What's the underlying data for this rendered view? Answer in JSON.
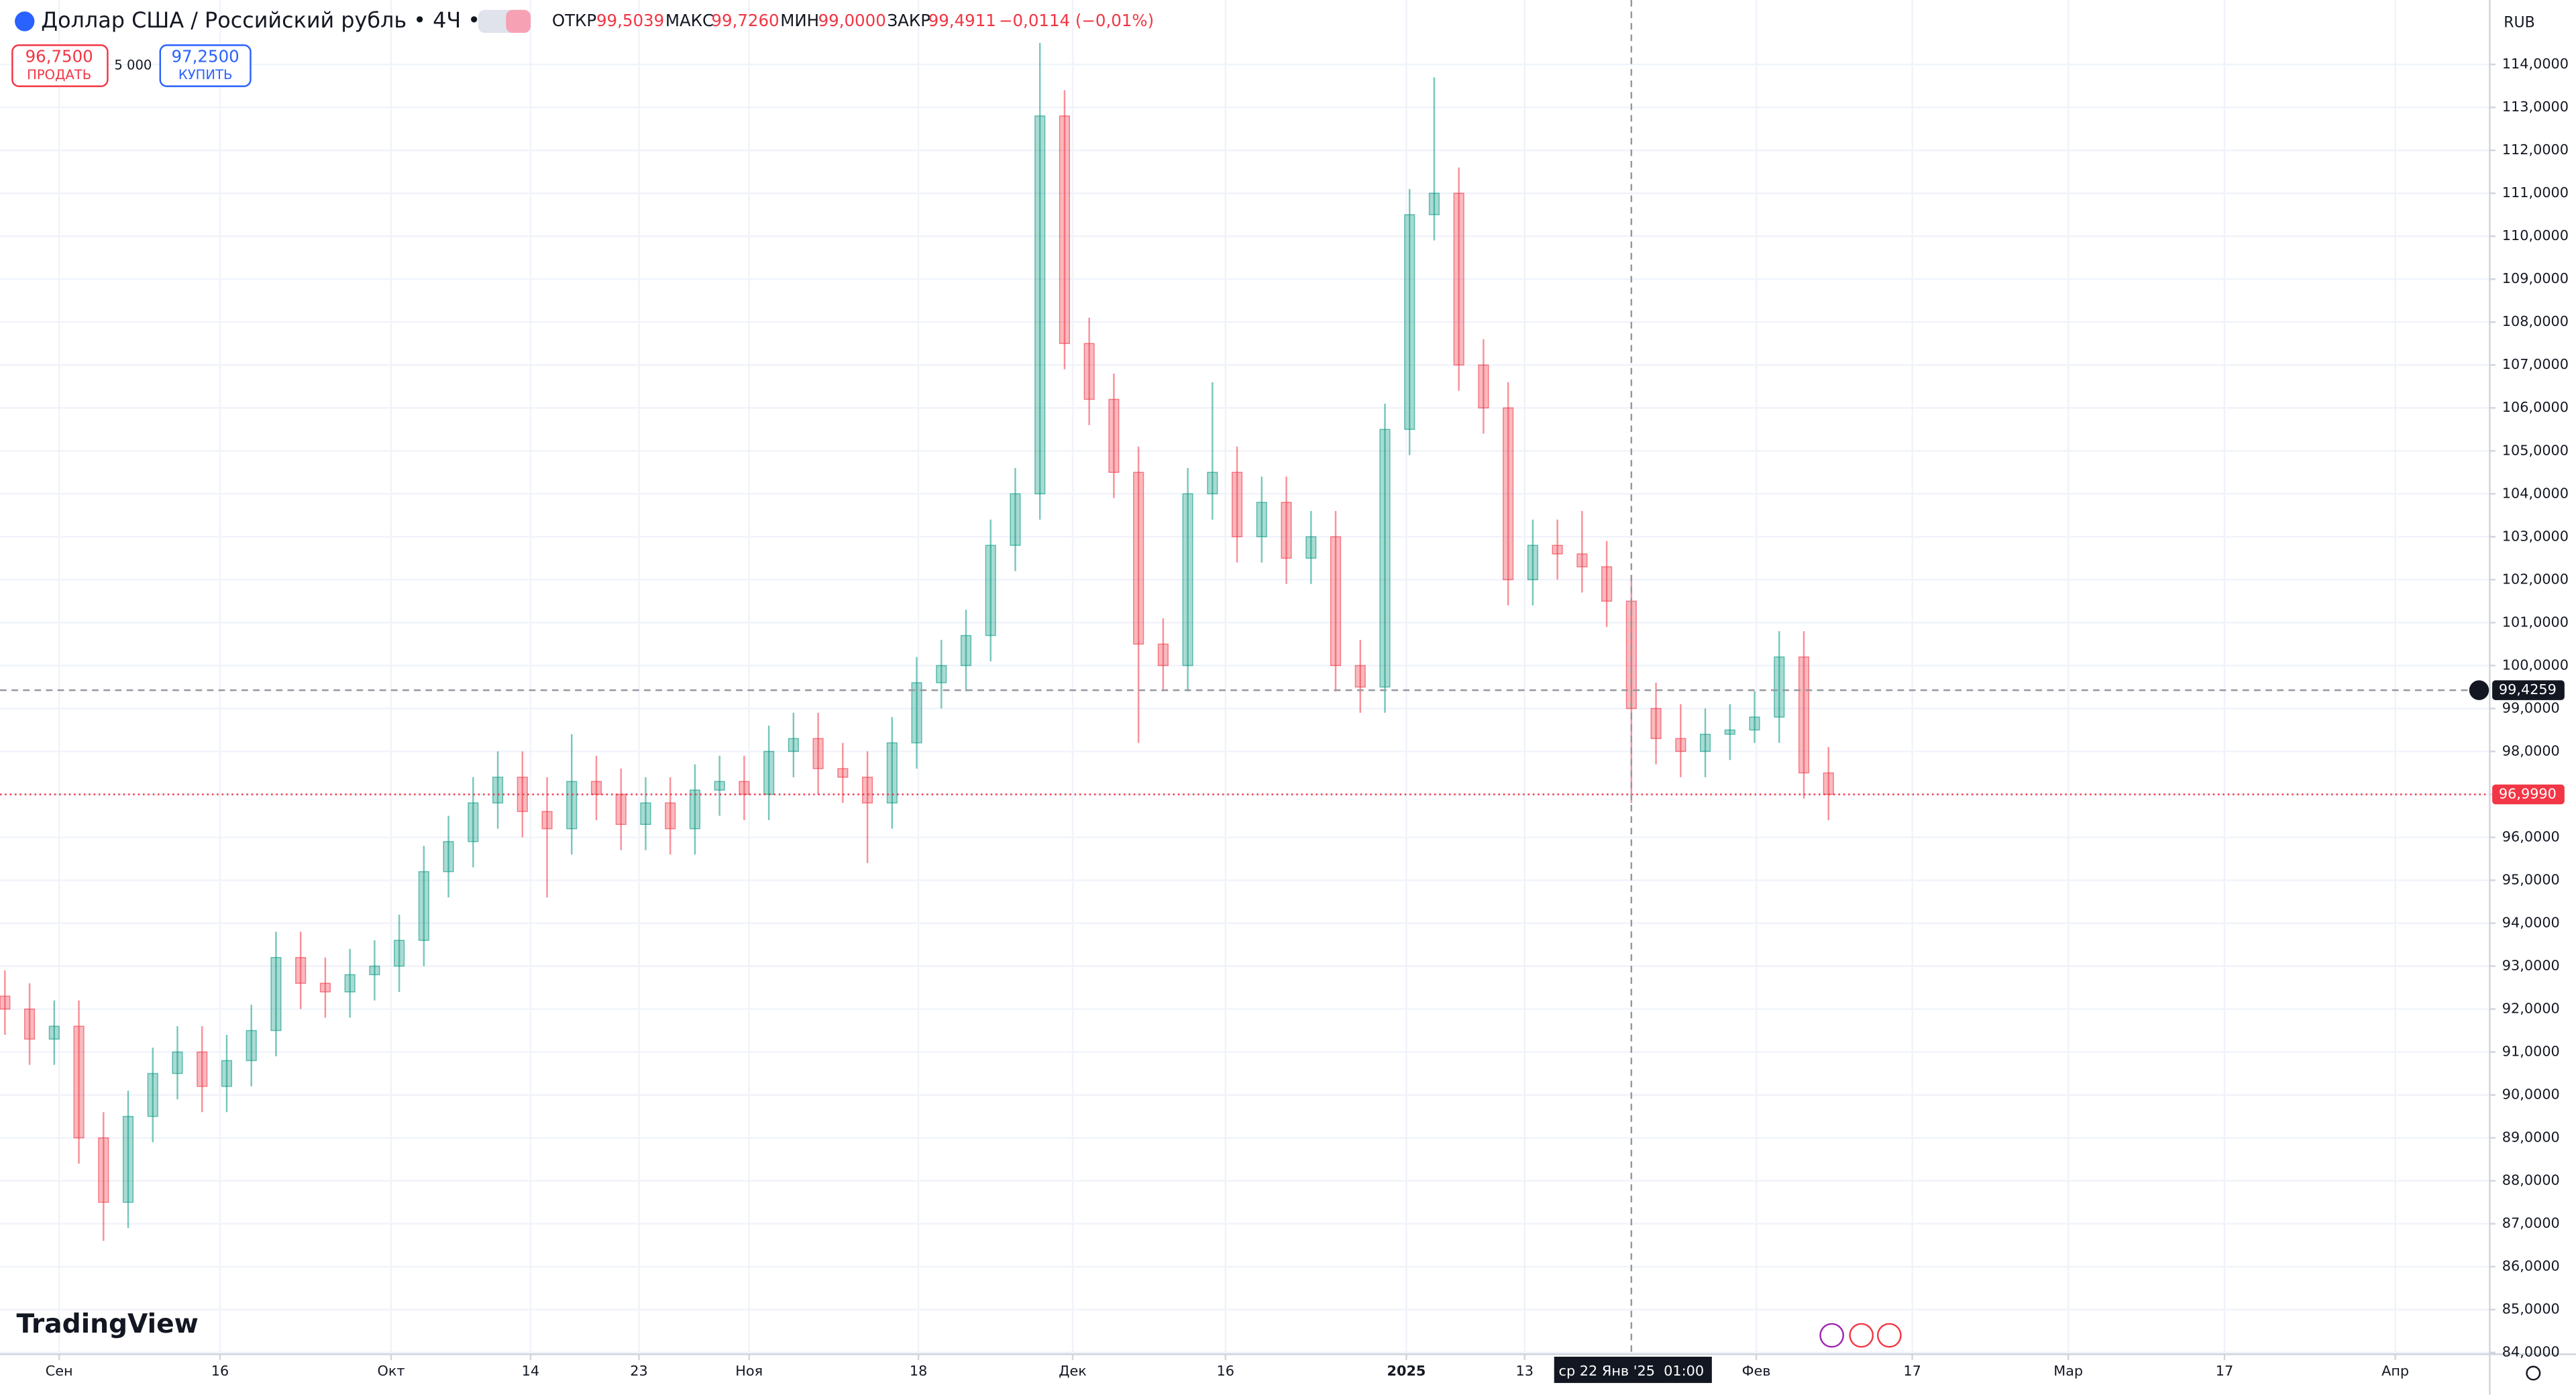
{
  "ui": {
    "title": "Доллар США / Российский рубль • 4Ч • ICE",
    "open_label": "ОТКР",
    "open": "99,5039",
    "high_label": "МАКС",
    "high": "99,7260",
    "low_label": "МИН",
    "low": "99,0000",
    "close_label": "ЗАКР",
    "close": "99,4911",
    "change": "−0,0114 (−0,01%)",
    "sell_price": "96,7500",
    "sell_label": "ПРОДАТЬ",
    "spread": "5 000",
    "buy_price": "97,2500",
    "buy_label": "КУПИТЬ",
    "currency": "RUB",
    "logo": "TradingView"
  },
  "chart_data": {
    "type": "candlestick",
    "up_color": "#089981",
    "down_color": "#f23645",
    "grid": true,
    "xlim": [
      0,
      101
    ],
    "xticks": [
      {
        "value": 2.4,
        "label": "Сен"
      },
      {
        "value": 8.93,
        "label": "16"
      },
      {
        "value": 15.87,
        "label": "Окт"
      },
      {
        "value": 21.53,
        "label": "14"
      },
      {
        "value": 25.93,
        "label": "23"
      },
      {
        "value": 30.4,
        "label": "Ноя"
      },
      {
        "value": 37.27,
        "label": "18"
      },
      {
        "value": 43.53,
        "label": "Дек"
      },
      {
        "value": 49.73,
        "label": "16"
      },
      {
        "value": 57.07,
        "label": "2025"
      },
      {
        "value": 61.87,
        "label": "13"
      },
      {
        "value": 71.27,
        "label": "Фев"
      },
      {
        "value": 77.6,
        "label": "17"
      },
      {
        "value": 83.93,
        "label": "Мар"
      },
      {
        "value": 90.27,
        "label": "17"
      },
      {
        "value": 97.2,
        "label": "Апр"
      }
    ],
    "ylim": [
      83.98,
      115.5
    ],
    "yticks": [
      {
        "value": 84,
        "label": "84,0000"
      },
      {
        "value": 85,
        "label": "85,0000"
      },
      {
        "value": 86,
        "label": "86,0000"
      },
      {
        "value": 87,
        "label": "87,0000"
      },
      {
        "value": 88,
        "label": "88,0000"
      },
      {
        "value": 89,
        "label": "89,0000"
      },
      {
        "value": 90,
        "label": "90,0000"
      },
      {
        "value": 91,
        "label": "91,0000"
      },
      {
        "value": 92,
        "label": "92,0000"
      },
      {
        "value": 93,
        "label": "93,0000"
      },
      {
        "value": 94,
        "label": "94,0000"
      },
      {
        "value": 95,
        "label": "95,0000"
      },
      {
        "value": 96,
        "label": "96,0000"
      },
      {
        "value": 97,
        "label": "97,0000"
      },
      {
        "value": 98,
        "label": "98,0000"
      },
      {
        "value": 99,
        "label": "99,0000"
      },
      {
        "value": 100,
        "label": "100,0000"
      },
      {
        "value": 101,
        "label": "101,0000"
      },
      {
        "value": 102,
        "label": "102,0000"
      },
      {
        "value": 103,
        "label": "103,0000"
      },
      {
        "value": 104,
        "label": "104,0000"
      },
      {
        "value": 105,
        "label": "105,0000"
      },
      {
        "value": 106,
        "label": "106,0000"
      },
      {
        "value": 107,
        "label": "107,0000"
      },
      {
        "value": 108,
        "label": "108,0000"
      },
      {
        "value": 109,
        "label": "109,0000"
      },
      {
        "value": 110,
        "label": "110,0000"
      },
      {
        "value": 111,
        "label": "111,0000"
      },
      {
        "value": 112,
        "label": "112,0000"
      },
      {
        "value": 113,
        "label": "113,0000"
      },
      {
        "value": 114,
        "label": "114,0000"
      }
    ],
    "open": [
      92.3,
      92.0,
      91.3,
      91.6,
      89.0,
      87.5,
      89.5,
      90.5,
      91.0,
      90.2,
      90.8,
      91.5,
      93.2,
      92.6,
      92.4,
      92.8,
      93.0,
      93.6,
      95.2,
      95.9,
      96.8,
      97.4,
      96.6,
      96.2,
      97.3,
      97.0,
      96.3,
      96.8,
      96.2,
      97.1,
      97.3,
      97.0,
      98.0,
      98.3,
      97.6,
      97.4,
      96.8,
      98.2,
      99.6,
      100.0,
      100.7,
      102.8,
      104.0,
      112.8,
      107.5,
      106.2,
      104.5,
      100.5,
      100.0,
      104.0,
      104.5,
      103.0,
      103.8,
      102.5,
      103.0,
      100.0,
      99.5,
      105.5,
      110.5,
      111.0,
      107.0,
      106.0,
      102.0,
      102.8,
      102.6,
      102.3,
      101.5,
      99.0,
      98.3,
      98.0,
      98.4,
      98.5,
      98.8,
      100.2,
      97.5
    ],
    "high": [
      92.9,
      92.6,
      92.2,
      92.2,
      89.6,
      90.1,
      91.1,
      91.6,
      91.6,
      91.4,
      92.1,
      93.8,
      93.8,
      93.2,
      93.4,
      93.6,
      94.2,
      95.8,
      96.5,
      97.4,
      98.0,
      98.0,
      97.4,
      98.4,
      97.9,
      97.6,
      97.4,
      97.4,
      97.7,
      97.9,
      97.9,
      98.6,
      98.9,
      98.9,
      98.2,
      98.0,
      98.8,
      100.2,
      100.6,
      101.3,
      103.4,
      104.6,
      114.5,
      113.4,
      108.1,
      106.8,
      105.1,
      101.1,
      104.6,
      106.6,
      105.1,
      104.4,
      104.4,
      103.6,
      103.6,
      100.6,
      106.1,
      111.1,
      113.7,
      111.6,
      107.6,
      106.6,
      103.4,
      103.4,
      103.6,
      102.9,
      102.1,
      99.6,
      99.1,
      99.0,
      99.1,
      99.4,
      100.8,
      100.8,
      98.1
    ],
    "low": [
      91.4,
      90.7,
      90.7,
      88.4,
      86.6,
      86.9,
      88.9,
      89.9,
      89.6,
      89.6,
      90.2,
      90.9,
      92.0,
      91.8,
      91.8,
      92.2,
      92.4,
      93.0,
      94.6,
      95.3,
      96.2,
      96.0,
      94.6,
      95.6,
      96.4,
      95.7,
      95.7,
      95.6,
      95.6,
      96.5,
      96.4,
      96.4,
      97.4,
      97.0,
      96.8,
      95.4,
      96.2,
      97.6,
      99.0,
      99.4,
      100.1,
      102.2,
      103.4,
      106.9,
      105.6,
      103.9,
      98.2,
      99.4,
      99.4,
      103.4,
      102.4,
      102.4,
      101.9,
      101.9,
      99.4,
      98.9,
      98.9,
      104.9,
      109.9,
      106.4,
      105.4,
      101.4,
      101.4,
      102.0,
      101.7,
      100.9,
      96.8,
      97.7,
      97.4,
      97.4,
      97.8,
      98.2,
      98.2,
      96.9,
      96.4
    ],
    "close": [
      92.0,
      91.3,
      91.6,
      89.0,
      87.5,
      89.5,
      90.5,
      91.0,
      90.2,
      90.8,
      91.5,
      93.2,
      92.6,
      92.4,
      92.8,
      93.0,
      93.6,
      95.2,
      95.9,
      96.8,
      97.4,
      96.6,
      96.2,
      97.3,
      97.0,
      96.3,
      96.8,
      96.2,
      97.1,
      97.3,
      97.0,
      98.0,
      98.3,
      97.6,
      97.4,
      96.8,
      98.2,
      99.6,
      100.0,
      100.7,
      102.8,
      104.0,
      112.8,
      107.5,
      106.2,
      104.5,
      100.5,
      100.0,
      104.0,
      104.5,
      103.0,
      103.8,
      102.5,
      103.0,
      100.0,
      99.5,
      105.5,
      110.5,
      111.0,
      107.0,
      106.0,
      102.0,
      102.8,
      102.6,
      102.3,
      101.5,
      99.0,
      98.3,
      98.0,
      98.4,
      98.5,
      98.8,
      100.2,
      97.5,
      97.0
    ],
    "crosshair": {
      "price": {
        "value": 99.4259,
        "label": "99,4259"
      },
      "time": {
        "value": 66.2,
        "label": "ср 22 Янв '25  01:00"
      }
    },
    "last_price": {
      "value": 96.999,
      "label": "96,9990"
    }
  }
}
